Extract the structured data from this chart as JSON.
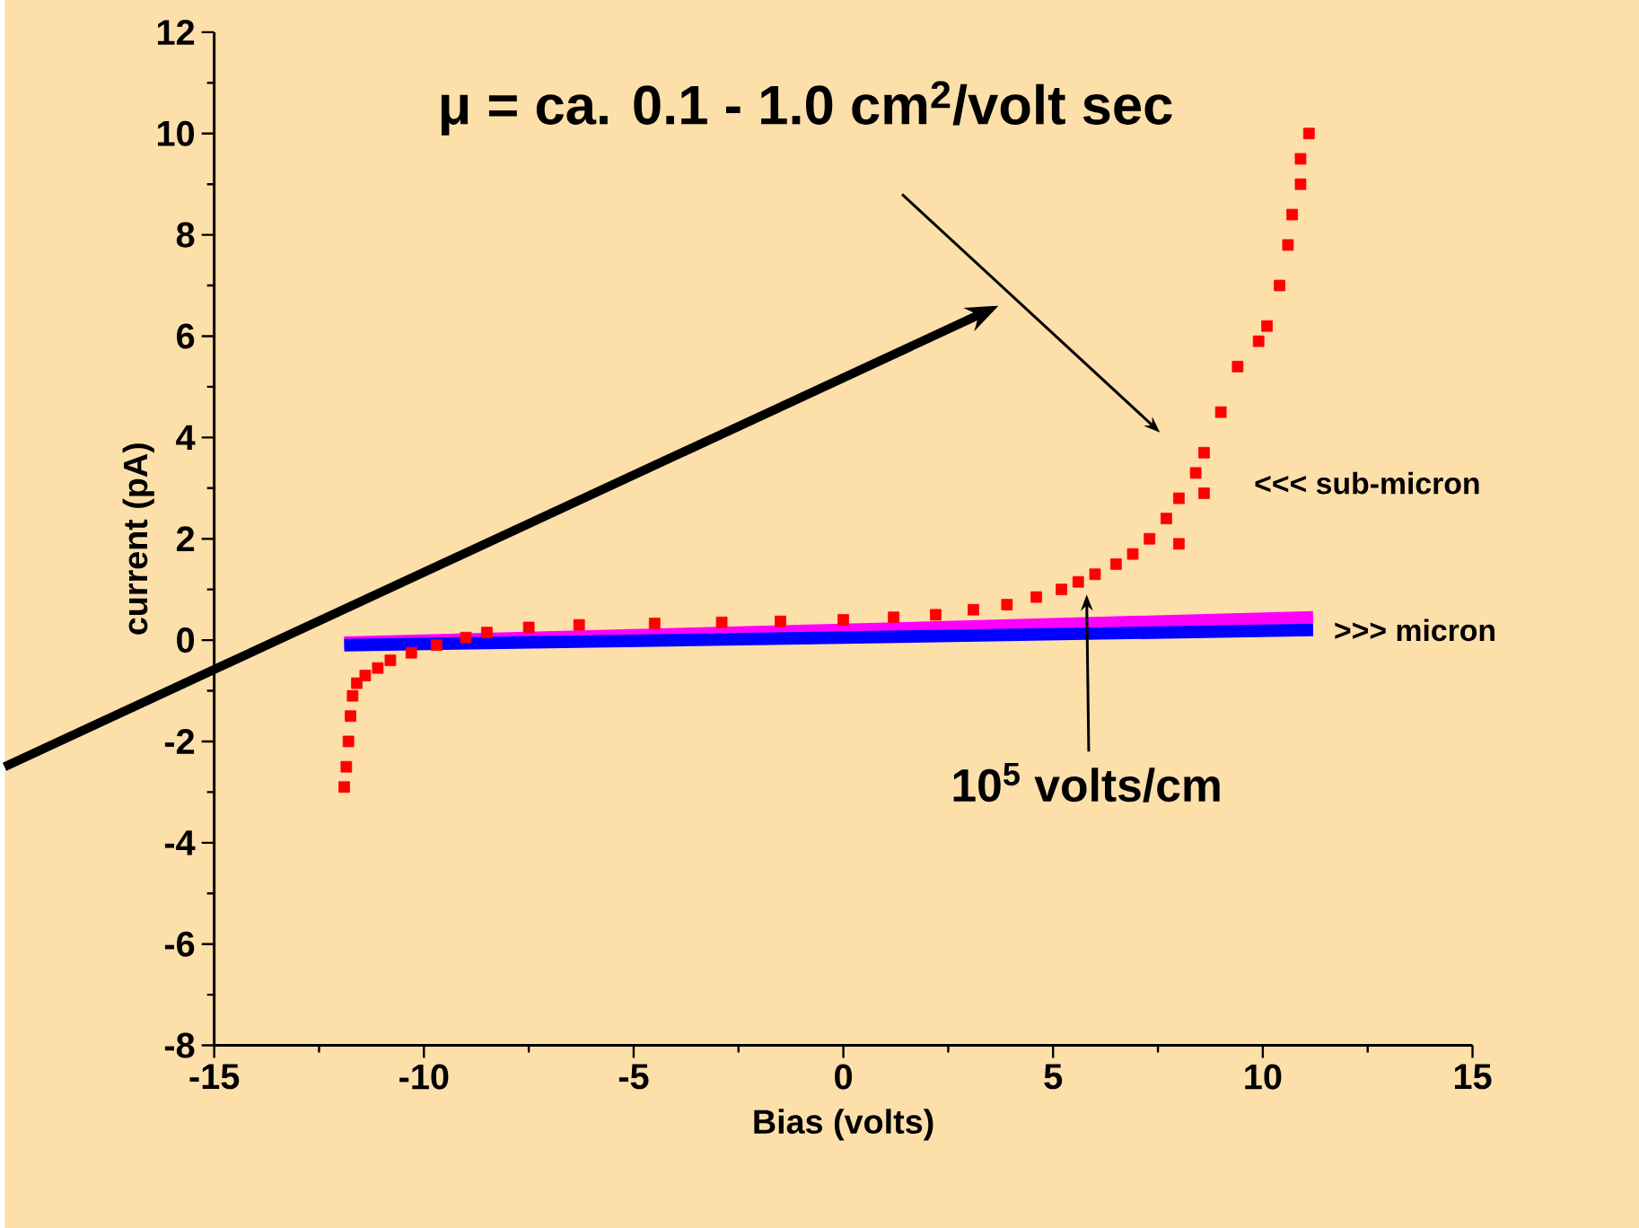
{
  "chart_data": {
    "type": "scatter",
    "xlabel": "Bias (volts)",
    "ylabel": "current (pA)",
    "xlim": [
      -15,
      15
    ],
    "ylim": [
      -8,
      12
    ],
    "xticks": [
      -15,
      -10,
      -5,
      0,
      5,
      10,
      15
    ],
    "yticks": [
      -8,
      -6,
      -4,
      -2,
      0,
      2,
      4,
      6,
      8,
      10,
      12
    ],
    "series": [
      {
        "name": "<<< sub-micron",
        "color": "#ff0000",
        "marker": "square",
        "x": [
          -11.9,
          -11.85,
          -11.8,
          -11.75,
          -11.7,
          -11.6,
          -11.4,
          -11.1,
          -10.8,
          -10.3,
          -9.7,
          -9.0,
          -8.5,
          -7.5,
          -6.3,
          -4.5,
          -2.9,
          -1.5,
          0,
          1.2,
          2.2,
          3.1,
          3.9,
          4.6,
          5.2,
          5.6,
          6.0,
          6.5,
          6.9,
          7.3,
          7.7,
          8.0,
          8.0,
          8.4,
          8.6,
          8.6,
          9.0,
          9.4,
          9.9,
          10.1,
          10.4,
          10.6,
          10.7,
          10.9,
          10.9,
          11.1
        ],
        "values": [
          -2.9,
          -2.5,
          -2.0,
          -1.5,
          -1.1,
          -0.85,
          -0.7,
          -0.55,
          -0.4,
          -0.25,
          -0.1,
          0.05,
          0.15,
          0.25,
          0.3,
          0.33,
          0.35,
          0.37,
          0.4,
          0.45,
          0.5,
          0.6,
          0.7,
          0.85,
          1.0,
          1.15,
          1.3,
          1.5,
          1.7,
          2.0,
          2.4,
          2.8,
          1.9,
          3.3,
          3.7,
          2.9,
          4.5,
          5.4,
          5.9,
          6.2,
          7.0,
          7.8,
          8.4,
          9.0,
          9.5,
          10.0
        ]
      },
      {
        "type": "line",
        "color": "#ff00ff",
        "marker": "none",
        "line_style": "solid",
        "x": [
          -11.9,
          0,
          11.2
        ],
        "values": [
          -0.05,
          0.2,
          0.45
        ]
      },
      {
        "name": ">>> micron",
        "type": "line",
        "color": "#0000ff",
        "marker": "none",
        "line_style": "solid",
        "x": [
          -11.9,
          0,
          11.2
        ],
        "values": [
          -0.1,
          0.05,
          0.2
        ]
      }
    ],
    "annotations": [
      "μ = ca. 0.1 - 1.0 cm$^{2}$/volt sec",
      "10$^{5}$ volts/cm"
    ]
  }
}
